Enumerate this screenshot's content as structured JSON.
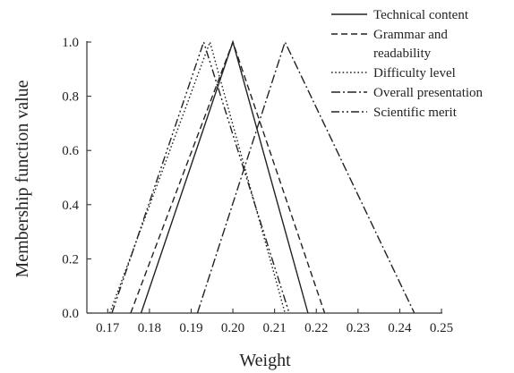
{
  "chart_data": {
    "type": "line",
    "xlabel": "Weight",
    "ylabel": "Membership function value",
    "xlim": [
      0.165,
      0.25
    ],
    "ylim": [
      0,
      1.0
    ],
    "x_ticks": [
      0.17,
      0.18,
      0.19,
      0.2,
      0.21,
      0.22,
      0.23,
      0.24,
      0.25
    ],
    "x_tick_labels": [
      "0.17",
      "0.18",
      "0.19",
      "0.20",
      "0.21",
      "0.22",
      "0.23",
      "0.24",
      "0.25"
    ],
    "y_ticks": [
      0,
      0.2,
      0.4,
      0.6,
      0.8,
      1.0
    ],
    "y_tick_labels": [
      "0.0",
      "0.2",
      "0.4",
      "0.6",
      "0.8",
      "1.0"
    ],
    "grid": false,
    "legend_position": "top-right",
    "legend_labels": [
      [
        "Technical content"
      ],
      [
        "Grammar and",
        "readability"
      ],
      [
        "Difficulty level"
      ],
      [
        "Overall presentation"
      ],
      [
        "Scientific merit"
      ]
    ],
    "series": [
      {
        "name": "Technical content",
        "color": "#222222",
        "dash": "solid",
        "x": [
          0.178,
          0.2,
          0.218
        ],
        "y": [
          0,
          1,
          0
        ]
      },
      {
        "name": "Grammar and readability",
        "color": "#222222",
        "dash": "dashed",
        "x": [
          0.1755,
          0.2,
          0.222
        ],
        "y": [
          0,
          1,
          0
        ]
      },
      {
        "name": "Difficulty level",
        "color": "#222222",
        "dash": "dotted",
        "x": [
          0.1705,
          0.1945,
          0.2125
        ],
        "y": [
          0,
          1,
          0
        ]
      },
      {
        "name": "Overall presentation",
        "color": "#222222",
        "dash": "dashdot",
        "x": [
          0.1915,
          0.2125,
          0.2435
        ],
        "y": [
          0,
          1,
          0
        ]
      },
      {
        "name": "Scientific merit",
        "color": "#222222",
        "dash": "dashdotdot",
        "x": [
          0.171,
          0.193,
          0.2135
        ],
        "y": [
          0,
          1,
          0
        ]
      }
    ]
  }
}
